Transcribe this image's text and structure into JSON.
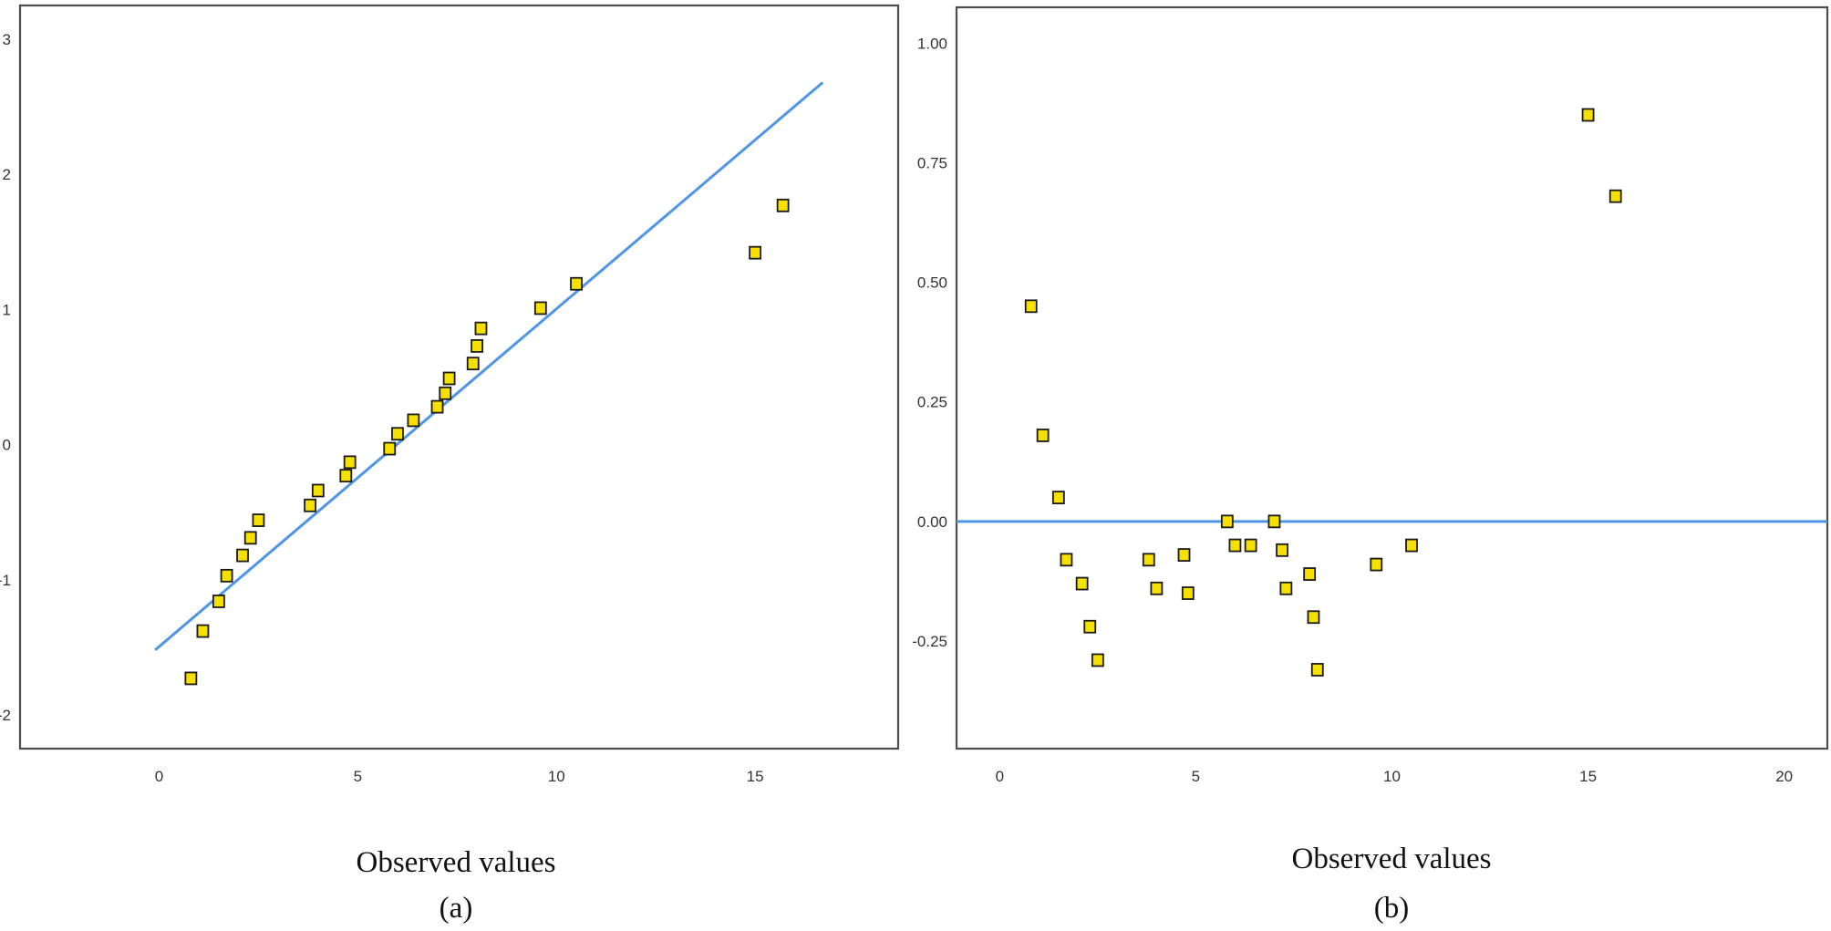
{
  "colors": {
    "reference_line": "#4f95e6",
    "marker_fill": "#f5e000",
    "marker_edge": "#1a1a1a",
    "frame": "#4d4d4d"
  },
  "chart_data": [
    {
      "type": "scatter",
      "panel_label": "(a)",
      "xlabel": "Observed values",
      "ylabel": "",
      "xlim": [
        -3.5,
        18.6
      ],
      "ylim": [
        -2.25,
        3.25
      ],
      "xticks": [
        0,
        5,
        10,
        15
      ],
      "xtick_labels": [
        "0",
        "5",
        "10",
        "15"
      ],
      "yticks": [
        -2,
        -1,
        0,
        1,
        2,
        3
      ],
      "ytick_labels": [
        "-2",
        "-1",
        "0",
        "1",
        "2",
        "3"
      ],
      "reference_line": {
        "x": [
          -0.1,
          16.7
        ],
        "y": [
          -1.52,
          2.68
        ]
      },
      "points": {
        "x": [
          0.8,
          1.1,
          1.5,
          1.7,
          2.1,
          2.3,
          2.5,
          3.8,
          4.0,
          4.7,
          4.8,
          5.8,
          6.0,
          6.4,
          7.0,
          7.2,
          7.3,
          7.9,
          8.0,
          8.1,
          9.6,
          10.5,
          15.0,
          15.7
        ],
        "y": [
          -1.73,
          -1.38,
          -1.16,
          -0.97,
          -0.82,
          -0.69,
          -0.56,
          -0.45,
          -0.34,
          -0.23,
          -0.13,
          -0.03,
          0.08,
          0.18,
          0.28,
          0.38,
          0.49,
          0.6,
          0.73,
          0.86,
          1.01,
          1.19,
          1.42,
          1.77
        ]
      }
    },
    {
      "type": "scatter",
      "panel_label": "(b)",
      "xlabel": "Observed values",
      "ylabel": "",
      "xlim": [
        -1.1,
        21.1
      ],
      "ylim": [
        -0.475,
        1.075
      ],
      "xticks": [
        0,
        5,
        10,
        15,
        20
      ],
      "xtick_labels": [
        "0",
        "5",
        "10",
        "15",
        "20"
      ],
      "yticks": [
        -0.25,
        0,
        0.25,
        0.5,
        0.75,
        1.0
      ],
      "ytick_labels": [
        "-0.25",
        "0.00",
        "0.25",
        "0.50",
        "0.75",
        "1.00"
      ],
      "reference_line": {
        "x": [
          -1.1,
          21.1
        ],
        "y": [
          0,
          0
        ]
      },
      "points": {
        "x": [
          0.8,
          1.1,
          1.5,
          1.7,
          2.1,
          2.3,
          2.5,
          3.8,
          4.0,
          4.7,
          4.8,
          5.8,
          6.0,
          6.4,
          7.0,
          7.2,
          7.3,
          7.9,
          8.0,
          8.1,
          9.6,
          10.5,
          15.0,
          15.7
        ],
        "y": [
          0.45,
          0.18,
          0.05,
          -0.08,
          -0.13,
          -0.22,
          -0.29,
          -0.08,
          -0.14,
          -0.07,
          -0.15,
          0.0,
          -0.05,
          -0.05,
          0.0,
          -0.06,
          -0.14,
          -0.11,
          -0.2,
          -0.31,
          -0.09,
          -0.05,
          0.85,
          0.68
        ]
      }
    }
  ]
}
